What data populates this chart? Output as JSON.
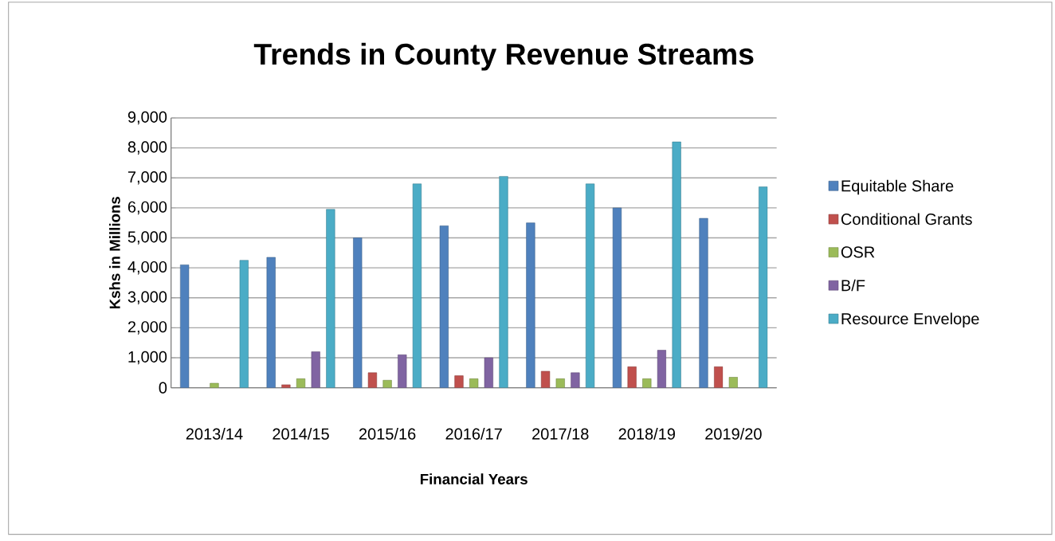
{
  "chart_data": {
    "type": "bar",
    "title": "Trends in County Revenue Streams",
    "xlabel": "Financial Years",
    "ylabel": "Kshs in Millions",
    "categories": [
      "2013/14",
      "2014/15",
      "2015/16",
      "2016/17",
      "2017/18",
      "2018/19",
      "2019/20"
    ],
    "series": [
      {
        "name": "Equitable Share",
        "color": "#4f81bd",
        "values": [
          4100,
          4350,
          5000,
          5400,
          5500,
          6000,
          5650
        ]
      },
      {
        "name": "Conditional Grants",
        "color": "#c0504d",
        "values": [
          null,
          100,
          500,
          400,
          550,
          700,
          700
        ]
      },
      {
        "name": "OSR",
        "color": "#9bbb59",
        "values": [
          150,
          300,
          250,
          300,
          300,
          300,
          350
        ]
      },
      {
        "name": "B/F",
        "color": "#8064a2",
        "values": [
          null,
          1200,
          1100,
          1000,
          500,
          1250,
          null
        ]
      },
      {
        "name": "Resource Envelope",
        "color": "#4bacc6",
        "values": [
          4250,
          5950,
          6800,
          7050,
          6800,
          8200,
          6700
        ]
      }
    ],
    "ylim": [
      0,
      9000
    ],
    "yticks": [
      {
        "value": 0,
        "label": "0"
      },
      {
        "value": 1000,
        "label": "1,000"
      },
      {
        "value": 2000,
        "label": "2,000"
      },
      {
        "value": 3000,
        "label": "3,000"
      },
      {
        "value": 4000,
        "label": "4,000"
      },
      {
        "value": 5000,
        "label": "5,000"
      },
      {
        "value": 6000,
        "label": "6,000"
      },
      {
        "value": 7000,
        "label": "7,000"
      },
      {
        "value": 8000,
        "label": "8,000"
      },
      {
        "value": 9000,
        "label": "9,000"
      }
    ],
    "grid": "y",
    "legend": "right"
  }
}
